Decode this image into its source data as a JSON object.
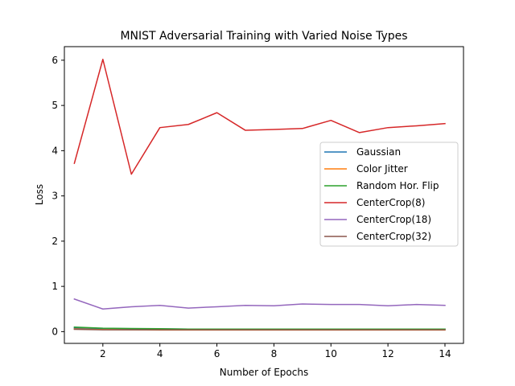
{
  "chart_data": {
    "type": "line",
    "title": "MNIST Adversarial Training with Varied Noise Types",
    "xlabel": "Number of Epochs",
    "ylabel": "Loss",
    "xlim": [
      0.65,
      14.65
    ],
    "ylim": [
      -0.26,
      6.3
    ],
    "xticks": [
      2,
      4,
      6,
      8,
      10,
      12,
      14
    ],
    "yticks": [
      0,
      1,
      2,
      3,
      4,
      5,
      6
    ],
    "grid": false,
    "legend_position": "center-right",
    "x": [
      1,
      2,
      3,
      4,
      5,
      6,
      7,
      8,
      9,
      10,
      11,
      12,
      13,
      14
    ],
    "series": [
      {
        "name": "Gaussian",
        "color": "#1f77b4",
        "values": [
          0.08,
          0.07,
          0.065,
          0.06,
          0.055,
          0.055,
          0.055,
          0.055,
          0.055,
          0.055,
          0.055,
          0.055,
          0.055,
          0.055
        ]
      },
      {
        "name": "Color Jitter",
        "color": "#ff7f0e",
        "values": [
          0.06,
          0.045,
          0.04,
          0.035,
          0.035,
          0.035,
          0.035,
          0.035,
          0.035,
          0.035,
          0.035,
          0.035,
          0.035,
          0.035
        ]
      },
      {
        "name": "Random Hor. Flip",
        "color": "#2ca02c",
        "values": [
          0.1,
          0.075,
          0.07,
          0.065,
          0.055,
          0.055,
          0.055,
          0.055,
          0.055,
          0.055,
          0.055,
          0.055,
          0.055,
          0.055
        ]
      },
      {
        "name": "CenterCrop(8)",
        "color": "#d62728",
        "values": [
          3.72,
          6.02,
          3.48,
          4.51,
          4.58,
          4.84,
          4.45,
          4.47,
          4.49,
          4.67,
          4.4,
          4.51,
          4.55,
          4.6
        ]
      },
      {
        "name": "CenterCrop(18)",
        "color": "#9467bd",
        "values": [
          0.72,
          0.5,
          0.55,
          0.58,
          0.52,
          0.55,
          0.58,
          0.57,
          0.61,
          0.6,
          0.6,
          0.57,
          0.6,
          0.58
        ]
      },
      {
        "name": "CenterCrop(32)",
        "color": "#8c564b",
        "values": [
          0.05,
          0.04,
          0.04,
          0.04,
          0.04,
          0.04,
          0.04,
          0.04,
          0.04,
          0.04,
          0.04,
          0.04,
          0.04,
          0.04
        ]
      }
    ]
  }
}
